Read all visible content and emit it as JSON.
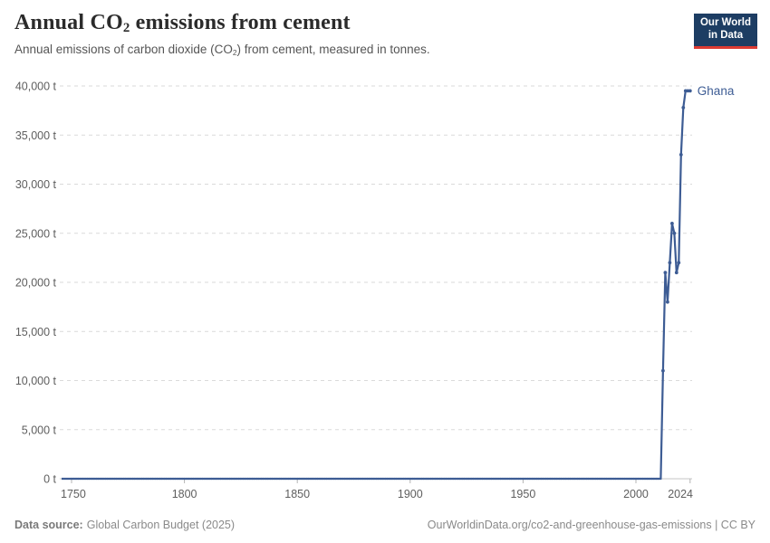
{
  "header": {
    "title": "Annual CO₂ emissions from cement",
    "title_parts": {
      "pre": "Annual CO",
      "sub": "2",
      "post": " emissions from cement"
    },
    "subtitle_parts": {
      "pre": "Annual emissions of carbon dioxide (CO",
      "sub": "2",
      "post": ") from cement, measured in tonnes."
    },
    "logo": {
      "line1": "Our World",
      "line2": "in Data",
      "bg_color": "#1d3d63",
      "accent_color": "#dc3a32"
    }
  },
  "chart_data": {
    "type": "line",
    "title": "Annual CO₂ emissions from cement",
    "subtitle": "Annual emissions of carbon dioxide (CO₂) from cement, measured in tonnes.",
    "unit": "tonnes",
    "grid": true,
    "legend_position": "end-of-line-label",
    "x_range": [
      1750,
      2024
    ],
    "y_range": [
      0,
      40000
    ],
    "x_ticks": [
      1750,
      1800,
      1850,
      1900,
      1950,
      2000,
      2024
    ],
    "y_ticks": [
      {
        "value": 0,
        "label": "0 t"
      },
      {
        "value": 5000,
        "label": "5,000 t"
      },
      {
        "value": 10000,
        "label": "10,000 t"
      },
      {
        "value": 15000,
        "label": "15,000 t"
      },
      {
        "value": 20000,
        "label": "20,000 t"
      },
      {
        "value": 25000,
        "label": "25,000 t"
      },
      {
        "value": 30000,
        "label": "30,000 t"
      },
      {
        "value": 35000,
        "label": "35,000 t"
      },
      {
        "value": 40000,
        "label": "40,000 t"
      }
    ],
    "series": [
      {
        "name": "Ghana",
        "color": "#3d5c94",
        "zero_span": [
          1750,
          2011
        ],
        "points": [
          [
            2012,
            11000
          ],
          [
            2013,
            21000
          ],
          [
            2014,
            18000
          ],
          [
            2015,
            22000
          ],
          [
            2016,
            26000
          ],
          [
            2017,
            25000
          ],
          [
            2018,
            21000
          ],
          [
            2019,
            22000
          ],
          [
            2020,
            33000
          ],
          [
            2021,
            37800
          ],
          [
            2022,
            39500
          ],
          [
            2023,
            39500
          ],
          [
            2024,
            39500
          ]
        ]
      }
    ]
  },
  "footer": {
    "source_label": "Data source:",
    "source_value": "Global Carbon Budget (2025)",
    "link": "OurWorldinData.org/co2-and-greenhouse-gas-emissions | CC BY"
  },
  "colors": {
    "line": "#3d5c94",
    "gridline": "#dadada",
    "axis_line": "#c4c4c4",
    "tick_mark": "#b4b4b4",
    "axis_text": "#5e5e5e"
  }
}
